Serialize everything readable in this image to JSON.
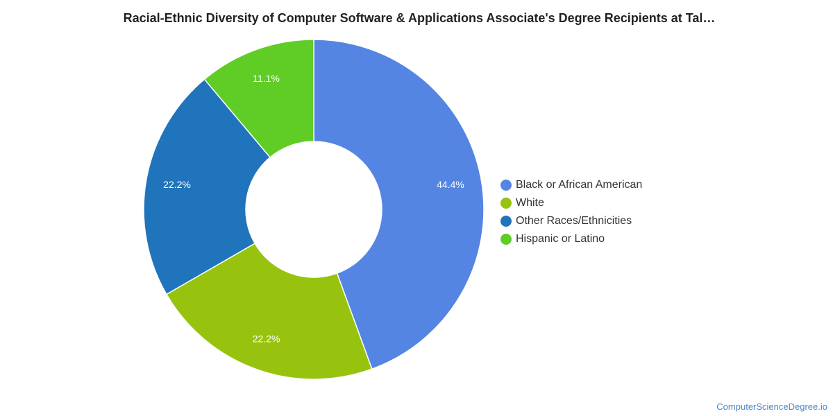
{
  "chart_data": {
    "type": "pie",
    "title": "Racial-Ethnic Diversity of Computer Software & Applications Associate's Degree Recipients at Tal…",
    "donut": true,
    "legend_position": "right",
    "slices": [
      {
        "label": "Black or African American",
        "value": 44.4,
        "display": "44.4%",
        "color": "#5485e3"
      },
      {
        "label": "White",
        "value": 22.2,
        "display": "22.2%",
        "color": "#97c30e"
      },
      {
        "label": "Other Races/Ethnicities",
        "value": 22.2,
        "display": "22.2%",
        "color": "#1f74bb"
      },
      {
        "label": "Hispanic or Latino",
        "value": 11.1,
        "display": "11.1%",
        "color": "#5fcd25"
      }
    ]
  },
  "watermark": "ComputerScienceDegree.io"
}
